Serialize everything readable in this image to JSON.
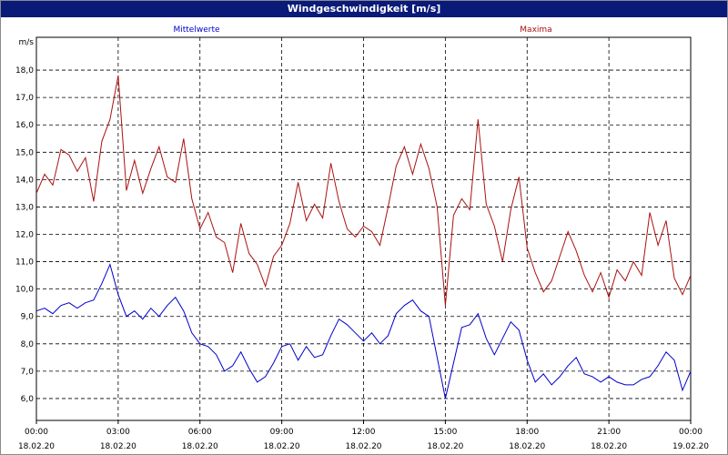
{
  "window": {
    "title": "Windgeschwindigkeit [m/s]"
  },
  "chart_data": {
    "type": "line",
    "title": "Windgeschwindigkeit [m/s]",
    "ylabel": "m/s",
    "ylim": [
      5.2,
      19.2
    ],
    "xlim": [
      0,
      24
    ],
    "grid": true,
    "y_ticks": [
      "6,0",
      "7,0",
      "8,0",
      "9,0",
      "10,0",
      "11,0",
      "12,0",
      "13,0",
      "14,0",
      "15,0",
      "16,0",
      "17,0",
      "18,0"
    ],
    "y_tick_values": [
      6,
      7,
      8,
      9,
      10,
      11,
      12,
      13,
      14,
      15,
      16,
      17,
      18
    ],
    "x_ticks": [
      {
        "time": "00:00",
        "date": "18.02.20"
      },
      {
        "time": "03:00",
        "date": "18.02.20"
      },
      {
        "time": "06:00",
        "date": "18.02.20"
      },
      {
        "time": "09:00",
        "date": "18.02.20"
      },
      {
        "time": "12:00",
        "date": "18.02.20"
      },
      {
        "time": "15:00",
        "date": "18.02.20"
      },
      {
        "time": "18:00",
        "date": "18.02.20"
      },
      {
        "time": "21:00",
        "date": "18.02.20"
      },
      {
        "time": "00:00",
        "date": "19.02.20"
      }
    ],
    "colors": {
      "mittelwerte": "#0000cc",
      "maxima": "#aa1111"
    },
    "series": [
      {
        "name": "Mittelwerte",
        "color": "#0000cc",
        "x": [
          0,
          0.3,
          0.6,
          0.9,
          1.2,
          1.5,
          1.8,
          2.1,
          2.4,
          2.7,
          3.0,
          3.3,
          3.6,
          3.9,
          4.2,
          4.5,
          4.8,
          5.1,
          5.4,
          5.7,
          6.0,
          6.3,
          6.6,
          6.9,
          7.2,
          7.5,
          7.8,
          8.1,
          8.4,
          8.7,
          9.0,
          9.3,
          9.6,
          9.9,
          10.2,
          10.5,
          10.8,
          11.1,
          11.4,
          11.7,
          12.0,
          12.3,
          12.6,
          12.9,
          13.2,
          13.5,
          13.8,
          14.1,
          14.4,
          14.7,
          15.0,
          15.3,
          15.6,
          15.9,
          16.2,
          16.5,
          16.8,
          17.1,
          17.4,
          17.7,
          18.0,
          18.3,
          18.6,
          18.9,
          19.2,
          19.5,
          19.8,
          20.1,
          20.4,
          20.7,
          21.0,
          21.3,
          21.6,
          21.9,
          22.2,
          22.5,
          22.8,
          23.1,
          23.4,
          23.7,
          24.0
        ],
        "values": [
          9.2,
          9.3,
          9.1,
          9.4,
          9.5,
          9.3,
          9.5,
          9.6,
          10.2,
          10.9,
          9.8,
          9.0,
          9.2,
          8.9,
          9.3,
          9.0,
          9.4,
          9.7,
          9.2,
          8.4,
          8.0,
          7.9,
          7.6,
          7.0,
          7.2,
          7.7,
          7.1,
          6.6,
          6.8,
          7.3,
          7.9,
          8.0,
          7.4,
          7.9,
          7.5,
          7.6,
          8.3,
          8.9,
          8.7,
          8.4,
          8.1,
          8.4,
          8.0,
          8.3,
          9.1,
          9.4,
          9.6,
          9.2,
          9.0,
          7.5,
          6.0,
          7.3,
          8.6,
          8.7,
          9.1,
          8.2,
          7.6,
          8.2,
          8.8,
          8.5,
          7.4,
          6.6,
          6.9,
          6.5,
          6.8,
          7.2,
          7.5,
          6.9,
          6.8,
          6.6,
          6.8,
          6.6,
          6.5,
          6.5,
          6.7,
          6.8,
          7.2,
          7.7,
          7.4,
          6.3,
          7.0
        ]
      },
      {
        "name": "Maxima",
        "color": "#aa1111",
        "x": [
          0,
          0.3,
          0.6,
          0.9,
          1.2,
          1.5,
          1.8,
          2.1,
          2.4,
          2.7,
          3.0,
          3.3,
          3.6,
          3.9,
          4.2,
          4.5,
          4.8,
          5.1,
          5.4,
          5.7,
          6.0,
          6.3,
          6.6,
          6.9,
          7.2,
          7.5,
          7.8,
          8.1,
          8.4,
          8.7,
          9.0,
          9.3,
          9.6,
          9.9,
          10.2,
          10.5,
          10.8,
          11.1,
          11.4,
          11.7,
          12.0,
          12.3,
          12.6,
          12.9,
          13.2,
          13.5,
          13.8,
          14.1,
          14.4,
          14.7,
          15.0,
          15.3,
          15.6,
          15.9,
          16.2,
          16.5,
          16.8,
          17.1,
          17.4,
          17.7,
          18.0,
          18.3,
          18.6,
          18.9,
          19.2,
          19.5,
          19.8,
          20.1,
          20.4,
          20.7,
          21.0,
          21.3,
          21.6,
          21.9,
          22.2,
          22.5,
          22.8,
          23.1,
          23.4,
          23.7,
          24.0
        ],
        "values": [
          13.5,
          14.2,
          13.8,
          15.1,
          14.9,
          14.3,
          14.8,
          13.2,
          15.4,
          16.2,
          17.8,
          13.6,
          14.7,
          13.5,
          14.4,
          15.2,
          14.1,
          13.9,
          15.5,
          13.3,
          12.2,
          12.8,
          11.9,
          11.7,
          10.6,
          12.4,
          11.3,
          10.9,
          10.1,
          11.2,
          11.6,
          12.4,
          13.9,
          12.5,
          13.1,
          12.6,
          14.6,
          13.2,
          12.2,
          11.9,
          12.3,
          12.1,
          11.6,
          13.0,
          14.5,
          15.2,
          14.2,
          15.3,
          14.4,
          13.0,
          9.4,
          12.7,
          13.3,
          12.9,
          16.2,
          13.1,
          12.3,
          11.0,
          12.9,
          14.1,
          11.5,
          10.6,
          9.9,
          10.3,
          11.2,
          12.1,
          11.4,
          10.5,
          9.9,
          10.6,
          9.7,
          10.7,
          10.3,
          11.0,
          10.5,
          12.8,
          11.6,
          12.5,
          10.4,
          9.8,
          10.5
        ]
      }
    ]
  }
}
